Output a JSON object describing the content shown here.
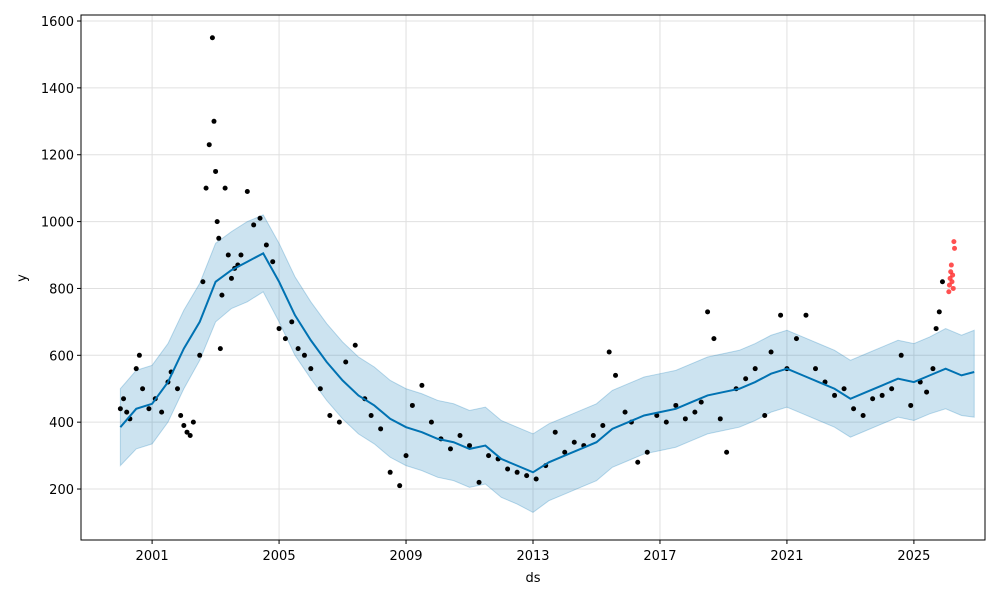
{
  "chart_data": {
    "type": "forecast",
    "xlabel": "ds",
    "ylabel": "y",
    "xlim": [
      1998.76,
      2027.24
    ],
    "ylim": [
      47.5,
      1618
    ],
    "xticks": [
      2001,
      2005,
      2009,
      2013,
      2017,
      2021,
      2025
    ],
    "yticks": [
      200,
      400,
      600,
      800,
      1000,
      1200,
      1400,
      1600
    ],
    "grid": true,
    "observed": {
      "color": "#000000",
      "x": [
        2000.0,
        2000.1,
        2000.2,
        2000.3,
        2000.5,
        2000.6,
        2000.7,
        2000.9,
        2001.1,
        2001.3,
        2001.5,
        2001.6,
        2001.8,
        2001.9,
        2002.0,
        2002.1,
        2002.2,
        2002.3,
        2002.5,
        2002.6,
        2002.7,
        2002.8,
        2002.9,
        2002.95,
        2003.0,
        2003.05,
        2003.1,
        2003.15,
        2003.2,
        2003.3,
        2003.4,
        2003.5,
        2003.6,
        2003.7,
        2003.8,
        2004.0,
        2004.2,
        2004.4,
        2004.6,
        2004.8,
        2005.0,
        2005.2,
        2005.4,
        2005.6,
        2005.8,
        2006.0,
        2006.3,
        2006.6,
        2006.9,
        2007.1,
        2007.4,
        2007.7,
        2007.9,
        2008.2,
        2008.5,
        2008.8,
        2009.0,
        2009.2,
        2009.5,
        2009.8,
        2010.1,
        2010.4,
        2010.7,
        2011.0,
        2011.3,
        2011.6,
        2011.9,
        2012.2,
        2012.5,
        2012.8,
        2013.1,
        2013.4,
        2013.7,
        2014.0,
        2014.3,
        2014.6,
        2014.9,
        2015.2,
        2015.4,
        2015.6,
        2015.9,
        2016.1,
        2016.3,
        2016.6,
        2016.9,
        2017.2,
        2017.5,
        2017.8,
        2018.1,
        2018.3,
        2018.5,
        2018.7,
        2018.9,
        2019.1,
        2019.4,
        2019.7,
        2020.0,
        2020.3,
        2020.5,
        2020.8,
        2021.0,
        2021.3,
        2021.6,
        2021.9,
        2022.2,
        2022.5,
        2022.8,
        2023.1,
        2023.4,
        2023.7,
        2024.0,
        2024.3,
        2024.6,
        2024.9,
        2025.2,
        2025.4,
        2025.6,
        2025.7,
        2025.8,
        2025.9
      ],
      "values": [
        440,
        470,
        430,
        410,
        560,
        600,
        500,
        440,
        470,
        430,
        520,
        550,
        500,
        420,
        390,
        370,
        360,
        400,
        600,
        820,
        1100,
        1230,
        1550,
        1300,
        1150,
        1000,
        950,
        620,
        780,
        1100,
        900,
        830,
        860,
        870,
        900,
        1090,
        990,
        1010,
        930,
        880,
        680,
        650,
        700,
        620,
        600,
        560,
        500,
        420,
        400,
        580,
        630,
        470,
        420,
        380,
        250,
        210,
        300,
        450,
        510,
        400,
        350,
        320,
        360,
        330,
        220,
        300,
        290,
        260,
        250,
        240,
        230,
        270,
        370,
        310,
        340,
        330,
        360,
        390,
        610,
        540,
        430,
        400,
        280,
        310,
        420,
        400,
        450,
        410,
        430,
        460,
        730,
        650,
        410,
        310,
        500,
        530,
        560,
        420,
        610,
        720,
        560,
        650,
        720,
        560,
        520,
        480,
        500,
        440,
        420,
        470,
        480,
        500,
        600,
        450,
        520,
        490,
        560,
        680,
        730,
        820
      ]
    },
    "recent": {
      "color": "#ff3333",
      "x": [
        2026.1,
        2026.12,
        2026.14,
        2026.16,
        2026.18,
        2026.2,
        2026.22,
        2026.24,
        2026.26,
        2026.28
      ],
      "values": [
        790,
        810,
        830,
        850,
        870,
        820,
        840,
        800,
        940,
        920
      ]
    },
    "forecast": {
      "color": "#0072B2",
      "x": [
        2000.0,
        2000.5,
        2001.0,
        2001.5,
        2002.0,
        2002.5,
        2003.0,
        2003.5,
        2004.0,
        2004.5,
        2005.0,
        2005.5,
        2006.0,
        2006.5,
        2007.0,
        2007.5,
        2008.0,
        2008.5,
        2009.0,
        2009.5,
        2010.0,
        2010.5,
        2011.0,
        2011.5,
        2012.0,
        2012.5,
        2013.0,
        2013.5,
        2014.0,
        2014.5,
        2015.0,
        2015.5,
        2016.0,
        2016.5,
        2017.0,
        2017.5,
        2018.0,
        2018.5,
        2019.0,
        2019.5,
        2020.0,
        2020.5,
        2021.0,
        2021.5,
        2022.0,
        2022.5,
        2023.0,
        2023.5,
        2024.0,
        2024.5,
        2025.0,
        2025.5,
        2026.0,
        2026.5,
        2026.9
      ],
      "values": [
        385,
        440,
        455,
        520,
        620,
        700,
        820,
        855,
        880,
        905,
        820,
        720,
        645,
        580,
        525,
        480,
        450,
        410,
        385,
        370,
        350,
        340,
        320,
        330,
        290,
        270,
        250,
        280,
        300,
        320,
        340,
        380,
        400,
        420,
        430,
        440,
        460,
        480,
        490,
        500,
        520,
        545,
        560,
        540,
        520,
        500,
        470,
        490,
        510,
        530,
        520,
        540,
        560,
        540,
        550
      ],
      "lower": [
        270,
        320,
        335,
        400,
        500,
        585,
        700,
        740,
        760,
        790,
        700,
        600,
        530,
        465,
        410,
        365,
        335,
        295,
        270,
        255,
        235,
        225,
        205,
        215,
        175,
        155,
        130,
        165,
        185,
        205,
        225,
        265,
        285,
        305,
        315,
        325,
        345,
        365,
        375,
        385,
        405,
        430,
        445,
        425,
        405,
        385,
        355,
        375,
        395,
        415,
        405,
        425,
        440,
        420,
        415
      ],
      "upper": [
        500,
        555,
        570,
        635,
        735,
        815,
        935,
        970,
        1000,
        1020,
        935,
        835,
        760,
        695,
        640,
        595,
        565,
        525,
        500,
        485,
        465,
        455,
        435,
        445,
        405,
        385,
        365,
        395,
        415,
        435,
        455,
        495,
        515,
        535,
        545,
        555,
        575,
        595,
        605,
        615,
        635,
        660,
        675,
        655,
        635,
        615,
        585,
        605,
        625,
        645,
        635,
        655,
        680,
        660,
        675
      ]
    }
  }
}
